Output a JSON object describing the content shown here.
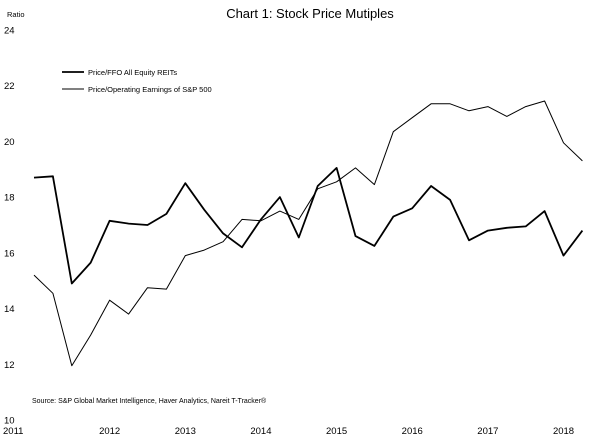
{
  "chart_data": {
    "type": "line",
    "title": "Chart 1: Stock Price Mutiples",
    "ylabel": "Ratio",
    "xlabel": "",
    "ylim": [
      10,
      24
    ],
    "yticks": [
      10,
      12,
      14,
      16,
      18,
      20,
      22,
      24
    ],
    "xlim": [
      2011.0,
      2018.35
    ],
    "xticks": [
      "2011",
      "2012",
      "2013",
      "2014",
      "2015",
      "2016",
      "2017",
      "2018"
    ],
    "grid": false,
    "legend_position": "upper-left",
    "source": "Source: S&P Global Market Intelligence, Haver Analytics, Nareit T-Tracker®",
    "series": [
      {
        "name": "Price/FFO All Equity REITs",
        "x": [
          2011.0,
          2011.25,
          2011.5,
          2011.75,
          2012.0,
          2012.25,
          2012.5,
          2012.75,
          2013.0,
          2013.25,
          2013.5,
          2013.75,
          2014.0,
          2014.25,
          2014.5,
          2014.75,
          2015.0,
          2015.25,
          2015.5,
          2015.75,
          2016.0,
          2016.25,
          2016.5,
          2016.75,
          2017.0,
          2017.25,
          2017.5,
          2017.75,
          2018.0,
          2018.25
        ],
        "y": [
          18.7,
          18.75,
          14.9,
          15.65,
          17.15,
          17.05,
          17.0,
          17.4,
          18.5,
          17.55,
          16.7,
          16.2,
          17.2,
          18.0,
          16.55,
          18.4,
          19.05,
          16.6,
          16.25,
          17.3,
          17.6,
          18.4,
          17.9,
          16.45,
          16.8,
          16.9,
          16.95,
          17.5,
          15.9,
          16.8
        ]
      },
      {
        "name": "Price/Operating Earnings of S&P 500",
        "x": [
          2011.0,
          2011.25,
          2011.5,
          2011.75,
          2012.0,
          2012.25,
          2012.5,
          2012.75,
          2013.0,
          2013.25,
          2013.5,
          2013.75,
          2014.0,
          2014.25,
          2014.5,
          2014.75,
          2015.0,
          2015.25,
          2015.5,
          2015.75,
          2016.0,
          2016.25,
          2016.5,
          2016.75,
          2017.0,
          2017.25,
          2017.5,
          2017.75,
          2018.0,
          2018.25
        ],
        "y": [
          15.2,
          14.55,
          11.95,
          13.05,
          14.3,
          13.8,
          14.75,
          14.7,
          15.9,
          16.1,
          16.4,
          17.2,
          17.15,
          17.5,
          17.2,
          18.3,
          18.55,
          19.05,
          18.45,
          20.35,
          20.85,
          21.35,
          21.35,
          21.1,
          21.25,
          20.9,
          21.25,
          21.45,
          19.95,
          19.3
        ]
      }
    ]
  }
}
